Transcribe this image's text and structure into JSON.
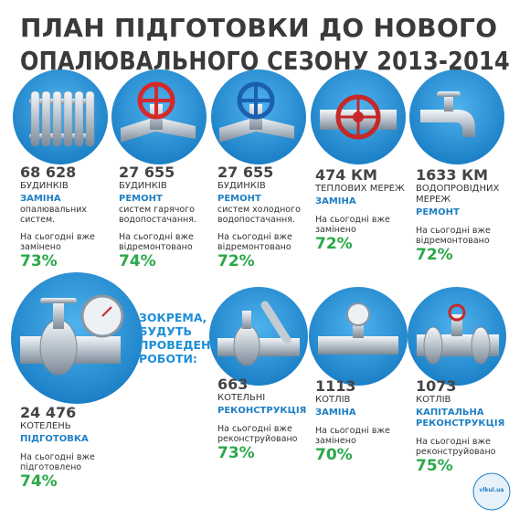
{
  "title_lines": [
    "ПЛАН ПІДГОТОВКИ ДО НОВОГО",
    "ОПАЛЮВАЛЬНОГО СЕЗОНУ 2013-2014"
  ],
  "items": [
    {
      "number": "68 628",
      "unit": "БУДИНКІВ",
      "action": "ЗАМІНА",
      "detail": "опалювальних систем.",
      "note": "На сьогодні вже замінено",
      "percent": "73%"
    },
    {
      "number": "27 655",
      "unit": "БУДИНКІВ",
      "action": "РЕМОНТ",
      "detail": "систем гарячого водопостачання.",
      "note": "На сьогодні вже відремонтовано",
      "percent": "74%"
    },
    {
      "number": "27 655",
      "unit": "БУДИНКІВ",
      "action": "РЕМОНТ",
      "detail": "систем холодного водопостачання.",
      "note": "На сьогодні вже відремонтовано",
      "percent": "72%"
    },
    {
      "number": "474 КМ",
      "unit": "ТЕПЛОВИХ МЕРЕЖ",
      "action": "ЗАМІНА",
      "note": "На сьогодні вже замінено",
      "percent": "72%"
    },
    {
      "number": "1633 КМ",
      "unit": "ВОДОПРОВІДНИХ МЕРЕЖ",
      "action": "РЕМОНТ",
      "note": "На сьогодні вже відремонтовано",
      "percent": "72%"
    },
    {
      "number": "24 476",
      "unit": "КОТЕЛЕНЬ",
      "action": "ПІДГОТОВКА",
      "note": "На сьогодні вже підготовлено",
      "percent": "74%"
    },
    {
      "number": "663",
      "unit": "КОТЕЛЬНІ",
      "action": "РЕКОНСТРУКЦІЯ",
      "note": "На сьогодні вже реконструйовано",
      "percent": "73%"
    },
    {
      "number": "1113",
      "unit": "КОТЛІВ",
      "action": "ЗАМІНА",
      "note": "На сьогодні вже замінено",
      "percent": "70%"
    },
    {
      "number": "1073",
      "unit": "КОТЛІВ",
      "action": "КАПІТАЛЬНА РЕКОНСТРУКЦІЯ",
      "note": "На сьогодні вже реконструйовано",
      "percent": "75%"
    }
  ],
  "callout": "ЗОКРЕМА, БУДУТЬ ПРОВЕДЕНІ РОБОТИ:",
  "logo": "vlkul.ua"
}
